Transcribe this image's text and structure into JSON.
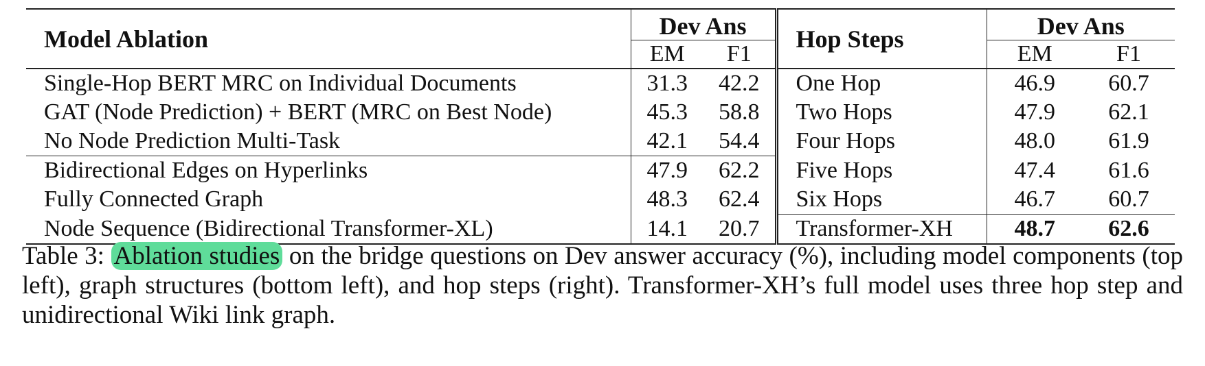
{
  "table": {
    "left_header": "Model Ablation",
    "right_header": "Hop Steps",
    "group_header": "Dev Ans",
    "sub_headers": [
      "EM",
      "F1"
    ],
    "left_rows": [
      {
        "label": "Single-Hop BERT MRC on Individual Documents",
        "em": "31.3",
        "f1": "42.2"
      },
      {
        "label": "GAT (Node Prediction) + BERT (MRC on Best Node)",
        "em": "45.3",
        "f1": "58.8"
      },
      {
        "label": "No Node Prediction Multi-Task",
        "em": "42.1",
        "f1": "54.4"
      },
      {
        "label": "Bidirectional Edges on Hyperlinks",
        "em": "47.9",
        "f1": "62.2"
      },
      {
        "label": "Fully Connected Graph",
        "em": "48.3",
        "f1": "62.4"
      },
      {
        "label": "Node Sequence (Bidirectional Transformer-XL)",
        "em": "14.1",
        "f1": "20.7"
      }
    ],
    "right_rows": [
      {
        "label": "One Hop",
        "em": "46.9",
        "f1": "60.7"
      },
      {
        "label": "Two Hops",
        "em": "47.9",
        "f1": "62.1"
      },
      {
        "label": "Four Hops",
        "em": "48.0",
        "f1": "61.9"
      },
      {
        "label": "Five Hops",
        "em": "47.4",
        "f1": "61.6"
      },
      {
        "label": "Six Hops",
        "em": "46.7",
        "f1": "60.7"
      },
      {
        "label": "Transformer-XH",
        "em": "48.7",
        "f1": "62.6"
      }
    ]
  },
  "caption": {
    "prefix": "Table 3: ",
    "highlight": "Ablation studies",
    "rest": " on the bridge questions on Dev answer accuracy (%), including model components (top left), graph structures (bottom left), and hop steps (right). Transformer-XH’s full model uses three hop step and unidirectional Wiki link graph.",
    "highlight_color": "#5fdc9a"
  }
}
